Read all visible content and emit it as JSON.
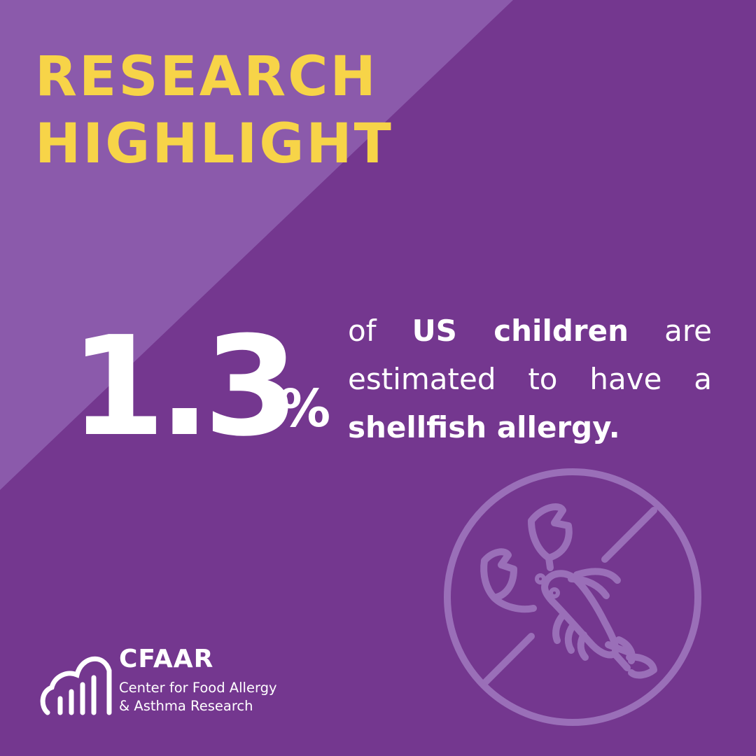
{
  "colors": {
    "background": "#74378f",
    "background_light": "#8b5aab",
    "headline": "#f7d448",
    "text": "#ffffff",
    "icon_line": "#9a6fb8"
  },
  "headline": {
    "line1": "RESEARCH",
    "line2": "HIGHLIGHT"
  },
  "stat": {
    "value": "1.3",
    "unit": "%",
    "text": {
      "of": "of",
      "population": "US children",
      "verb": "are",
      "line2": "estimated to have a",
      "allergy": "shellfish allergy."
    }
  },
  "icons": {
    "main": "no-shellfish-icon",
    "logo": "cloud-bars-logo-icon"
  },
  "logo": {
    "abbr": "CFAAR",
    "name_line1": "Center for Food Allergy",
    "name_line2": "& Asthma Research"
  }
}
